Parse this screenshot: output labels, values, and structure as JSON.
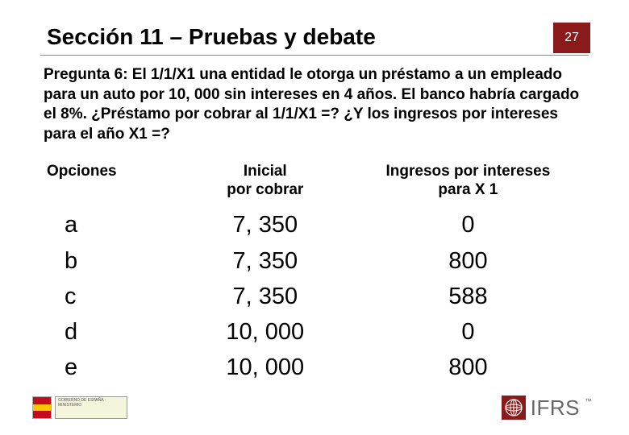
{
  "slide": {
    "title": "Sección 11 – Pruebas y debate",
    "page_number": "27",
    "title_color": "#000000",
    "title_fontsize": 28,
    "badge_bg": "#8b1a1a",
    "badge_fg": "#ffffff",
    "question_text": "Pregunta 6: El 1/1/X1 una entidad le otorga un préstamo a un empleado para un auto por 10, 000 sin intereses en 4 años. El banco habría cargado el 8%. ¿Préstamo por cobrar al 1/1/X1 =? ¿Y los ingresos por intereses para el año X1 =?",
    "question_fontsize": 19
  },
  "table": {
    "headers": {
      "options": "Opciones",
      "col1_line1": "Inicial",
      "col1_line2": "por cobrar",
      "col2_line1": "Ingresos por intereses",
      "col2_line2": "para X 1"
    },
    "header_fontsize": 19,
    "cell_fontsize": 29,
    "col_widths": [
      "26%",
      "30%",
      "44%"
    ],
    "rows": [
      {
        "label": "a",
        "initial": "7, 350",
        "interest": "0"
      },
      {
        "label": "b",
        "initial": "7, 350",
        "interest": "800"
      },
      {
        "label": "c",
        "initial": "7, 350",
        "interest": "588"
      },
      {
        "label": "d",
        "initial": "10, 000",
        "interest": "0"
      },
      {
        "label": "e",
        "initial": "10, 000",
        "interest": "800"
      }
    ]
  },
  "footer": {
    "ifrs_text": "IFRS",
    "ifrs_color": "#666666",
    "ifrs_square_bg": "#8b1a1a",
    "gov_placeholder": "GOBIERNO DE ESPAÑA · MINISTERIO"
  },
  "colors": {
    "background": "#ffffff",
    "text": "#000000",
    "divider": "#888888"
  }
}
